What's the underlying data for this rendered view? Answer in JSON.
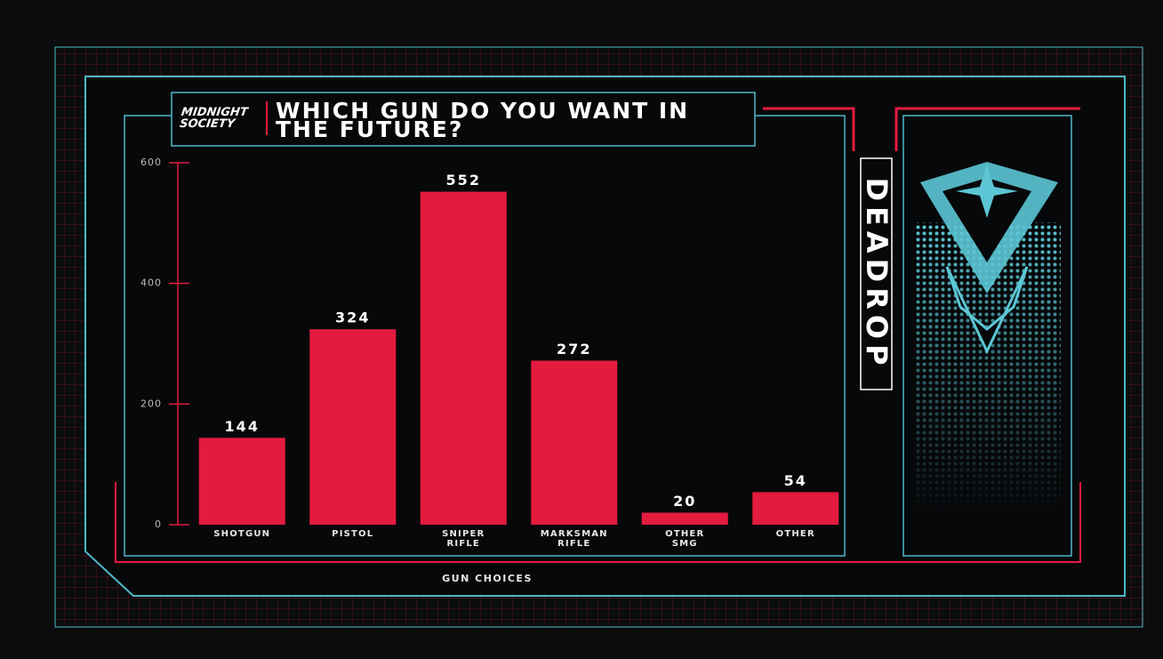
{
  "logo": "MIDNIGHT SOCIETY",
  "game_logo": "DEADROP",
  "chart_data": {
    "type": "bar",
    "title": "WHICH GUN DO YOU WANT IN THE FUTURE?",
    "x_label": "GUN CHOICES",
    "categories": [
      "SHOTGUN",
      "PISTOL",
      "SNIPER RIFLE",
      "MARKSMAN RIFLE",
      "OTHER SMG",
      "OTHER"
    ],
    "values": [
      144,
      324,
      552,
      272,
      20,
      54
    ],
    "color": "#e31b3f",
    "ylim": [
      0,
      600
    ],
    "yticks": [
      0,
      200,
      400,
      600
    ],
    "grid": false
  }
}
